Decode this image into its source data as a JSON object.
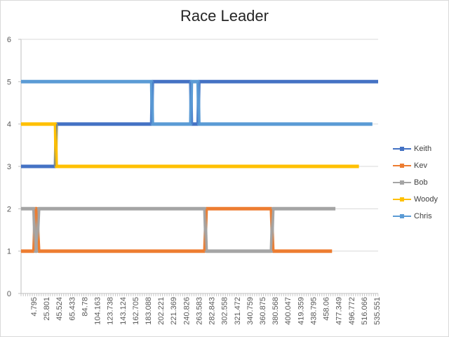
{
  "chart_data": {
    "type": "line",
    "title": "Race Leader",
    "xlabel": "",
    "ylabel": "",
    "ylim": [
      0,
      6
    ],
    "y_ticks": [
      "0",
      "1",
      "2",
      "3",
      "4",
      "5",
      "6"
    ],
    "x_tick_labels": [
      "4.795",
      "25.801",
      "45.524",
      "65.433",
      "84.78",
      "104.163",
      "123.738",
      "143.124",
      "162.705",
      "183.088",
      "202.221",
      "221.369",
      "240.826",
      "263.583",
      "282.843",
      "302.558",
      "321.472",
      "340.759",
      "360.875",
      "380.568",
      "400.047",
      "419.359",
      "438.795",
      "458.06",
      "477.349",
      "496.772",
      "516.066",
      "535.551"
    ],
    "grid": "horizontal",
    "legend": "right",
    "series": [
      {
        "name": "Keith",
        "color": "#4472C4",
        "steps": [
          [
            4.795,
            3
          ],
          [
            56,
            3
          ],
          [
            57,
            4
          ],
          [
            199,
            4
          ],
          [
            200,
            5
          ],
          [
            257,
            5
          ],
          [
            258,
            4
          ],
          [
            268,
            4
          ],
          [
            269,
            5
          ],
          [
            535.551,
            5
          ]
        ]
      },
      {
        "name": "Kev",
        "color": "#ED7D31",
        "steps": [
          [
            4.795,
            1
          ],
          [
            24,
            1
          ],
          [
            26,
            2
          ],
          [
            28,
            2
          ],
          [
            31,
            1
          ],
          [
            278,
            1
          ],
          [
            280,
            2
          ],
          [
            377,
            2
          ],
          [
            379,
            1
          ],
          [
            467,
            1
          ]
        ]
      },
      {
        "name": "Bob",
        "color": "#A5A5A5",
        "steps": [
          [
            4.795,
            2
          ],
          [
            24,
            2
          ],
          [
            26,
            1
          ],
          [
            28,
            1
          ],
          [
            31,
            2
          ],
          [
            278,
            2
          ],
          [
            280,
            1
          ],
          [
            377,
            1
          ],
          [
            379,
            2
          ],
          [
            472,
            2
          ]
        ]
      },
      {
        "name": "Woody",
        "color": "#FFC000",
        "steps": [
          [
            4.795,
            4
          ],
          [
            56,
            4
          ],
          [
            57,
            3
          ],
          [
            507,
            3
          ]
        ]
      },
      {
        "name": "Chris",
        "color": "#5B9BD5",
        "steps": [
          [
            4.795,
            5
          ],
          [
            199,
            5
          ],
          [
            200,
            4
          ],
          [
            257,
            4
          ],
          [
            258,
            5
          ],
          [
            268,
            5
          ],
          [
            269,
            4
          ],
          [
            527,
            4
          ]
        ]
      }
    ]
  }
}
